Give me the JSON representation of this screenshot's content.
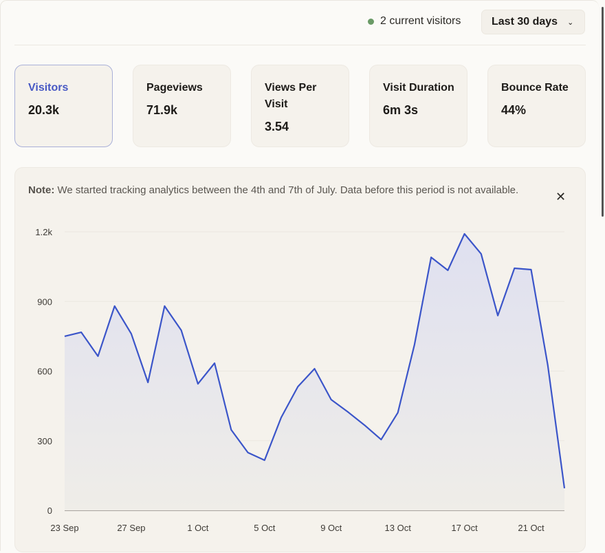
{
  "header": {
    "live_visitors": "2 current visitors",
    "live_dot_color": "#6a9a66",
    "date_range": "Last 30 days",
    "date_range_icon": "chevron-down-icon"
  },
  "metrics": [
    {
      "label": "Visitors",
      "value": "20.3k",
      "active": true
    },
    {
      "label": "Pageviews",
      "value": "71.9k"
    },
    {
      "label": "Views Per Visit",
      "value": "3.54"
    },
    {
      "label": "Visit Duration",
      "value": "6m 3s"
    },
    {
      "label": "Bounce Rate",
      "value": "44%"
    }
  ],
  "notice": {
    "prefix": "Note:",
    "text": " We started tracking analytics between the 4th and 7th of July. Data before this period is not available.",
    "close_icon": "close-icon"
  },
  "chart_data": {
    "type": "area",
    "x": [
      "23 Sep",
      "24 Sep",
      "25 Sep",
      "26 Sep",
      "27 Sep",
      "28 Sep",
      "29 Sep",
      "30 Sep",
      "1 Oct",
      "2 Oct",
      "3 Oct",
      "4 Oct",
      "5 Oct",
      "6 Oct",
      "7 Oct",
      "8 Oct",
      "9 Oct",
      "10 Oct",
      "11 Oct",
      "12 Oct",
      "13 Oct",
      "14 Oct",
      "15 Oct",
      "16 Oct",
      "17 Oct",
      "18 Oct",
      "19 Oct",
      "20 Oct",
      "21 Oct",
      "22 Oct",
      "23 Oct"
    ],
    "values": [
      750,
      767,
      664,
      880,
      761,
      551,
      880,
      776,
      545,
      634,
      347,
      249,
      216,
      400,
      533,
      610,
      477,
      424,
      367,
      305,
      421,
      714,
      1090,
      1034,
      1191,
      1105,
      839,
      1043,
      1037,
      625,
      95
    ],
    "x_tick_labels": [
      "23 Sep",
      "27 Sep",
      "1 Oct",
      "5 Oct",
      "9 Oct",
      "13 Oct",
      "17 Oct",
      "21 Oct"
    ],
    "y_ticks": [
      0,
      300,
      600,
      900,
      1200
    ],
    "y_tick_labels": [
      "0",
      "300",
      "600",
      "900",
      "1.2k"
    ],
    "ylim": [
      0,
      1200
    ],
    "grid": true,
    "line_color": "#3b55c9"
  }
}
